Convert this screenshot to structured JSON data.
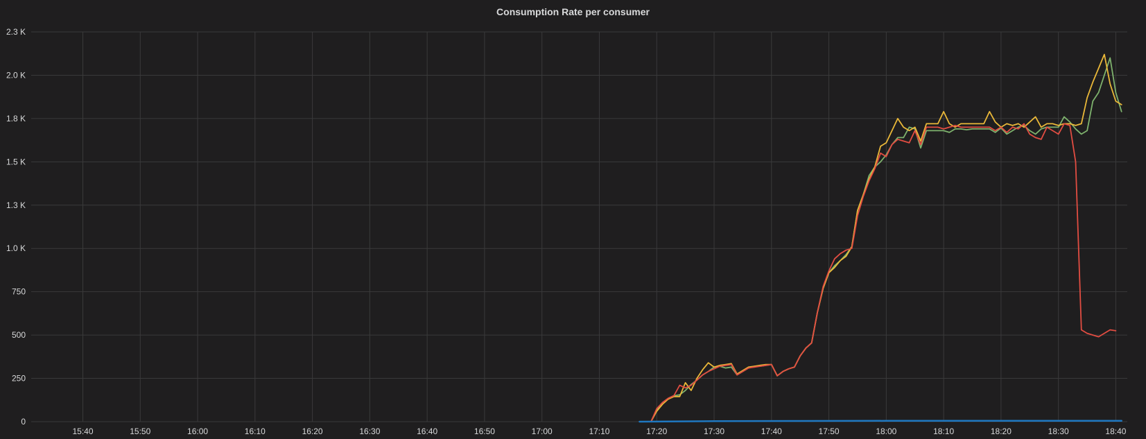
{
  "panel": {
    "title": "Consumption Rate per consumer"
  },
  "chart_data": {
    "type": "line",
    "title": "Consumption Rate per consumer",
    "xlabel": "",
    "ylabel": "",
    "x_domain": [
      "15:31",
      "18:42"
    ],
    "y_domain": [
      0,
      2250
    ],
    "y_ticks": [
      {
        "value": 0,
        "label": "0"
      },
      {
        "value": 250,
        "label": "250"
      },
      {
        "value": 500,
        "label": "500"
      },
      {
        "value": 750,
        "label": "750"
      },
      {
        "value": 1000,
        "label": "1.0 K"
      },
      {
        "value": 1250,
        "label": "1.3 K"
      },
      {
        "value": 1500,
        "label": "1.5 K"
      },
      {
        "value": 1750,
        "label": "1.8 K"
      },
      {
        "value": 2000,
        "label": "2.0 K"
      },
      {
        "value": 2250,
        "label": "2.3 K"
      }
    ],
    "x_ticks": [
      "15:40",
      "15:50",
      "16:00",
      "16:10",
      "16:20",
      "16:30",
      "16:40",
      "16:50",
      "17:00",
      "17:10",
      "17:20",
      "17:30",
      "17:40",
      "17:50",
      "18:00",
      "18:10",
      "18:20",
      "18:30",
      "18:40"
    ],
    "grid": true,
    "legend": "none",
    "series": [
      {
        "color": "#7eb26d",
        "points": [
          [
            "17:18",
            0
          ],
          [
            "17:19",
            0
          ],
          [
            "17:20",
            70
          ],
          [
            "17:21",
            110
          ],
          [
            "17:22",
            135
          ],
          [
            "17:23",
            150
          ],
          [
            "17:24",
            155
          ],
          [
            "17:25",
            180
          ],
          [
            "17:26",
            215
          ],
          [
            "17:27",
            240
          ],
          [
            "17:28",
            270
          ],
          [
            "17:29",
            290
          ],
          [
            "17:30",
            315
          ],
          [
            "17:31",
            320
          ],
          [
            "17:32",
            310
          ],
          [
            "17:33",
            315
          ],
          [
            "17:34",
            270
          ],
          [
            "17:35",
            290
          ],
          [
            "17:36",
            310
          ],
          [
            "17:37",
            320
          ],
          [
            "17:38",
            320
          ],
          [
            "17:39",
            325
          ],
          [
            "17:40",
            330
          ],
          [
            "17:41",
            265
          ],
          [
            "17:42",
            290
          ],
          [
            "17:43",
            305
          ],
          [
            "17:44",
            315
          ],
          [
            "17:45",
            380
          ],
          [
            "17:46",
            425
          ],
          [
            "17:47",
            455
          ],
          [
            "17:48",
            630
          ],
          [
            "17:49",
            770
          ],
          [
            "17:50",
            860
          ],
          [
            "17:51",
            900
          ],
          [
            "17:52",
            930
          ],
          [
            "17:53",
            965
          ],
          [
            "17:54",
            1010
          ],
          [
            "17:55",
            1220
          ],
          [
            "17:56",
            1310
          ],
          [
            "17:57",
            1420
          ],
          [
            "17:58",
            1470
          ],
          [
            "17:59",
            1500
          ],
          [
            "18:00",
            1540
          ],
          [
            "18:01",
            1600
          ],
          [
            "18:02",
            1640
          ],
          [
            "18:03",
            1640
          ],
          [
            "18:04",
            1700
          ],
          [
            "18:05",
            1690
          ],
          [
            "18:06",
            1580
          ],
          [
            "18:07",
            1680
          ],
          [
            "18:08",
            1680
          ],
          [
            "18:09",
            1680
          ],
          [
            "18:10",
            1680
          ],
          [
            "18:11",
            1670
          ],
          [
            "18:12",
            1690
          ],
          [
            "18:13",
            1690
          ],
          [
            "18:14",
            1685
          ],
          [
            "18:15",
            1690
          ],
          [
            "18:16",
            1690
          ],
          [
            "18:17",
            1690
          ],
          [
            "18:18",
            1690
          ],
          [
            "18:19",
            1670
          ],
          [
            "18:20",
            1695
          ],
          [
            "18:21",
            1660
          ],
          [
            "18:22",
            1680
          ],
          [
            "18:23",
            1700
          ],
          [
            "18:24",
            1710
          ],
          [
            "18:25",
            1680
          ],
          [
            "18:26",
            1660
          ],
          [
            "18:27",
            1690
          ],
          [
            "18:28",
            1700
          ],
          [
            "18:29",
            1700
          ],
          [
            "18:30",
            1700
          ],
          [
            "18:31",
            1760
          ],
          [
            "18:32",
            1730
          ],
          [
            "18:33",
            1690
          ],
          [
            "18:34",
            1660
          ],
          [
            "18:35",
            1680
          ],
          [
            "18:36",
            1850
          ],
          [
            "18:37",
            1900
          ],
          [
            "18:38",
            2000
          ],
          [
            "18:39",
            2100
          ],
          [
            "18:40",
            1900
          ],
          [
            "18:41",
            1790
          ]
        ]
      },
      {
        "color": "#eab839",
        "points": [
          [
            "17:18",
            0
          ],
          [
            "17:19",
            0
          ],
          [
            "17:20",
            60
          ],
          [
            "17:21",
            100
          ],
          [
            "17:22",
            130
          ],
          [
            "17:23",
            145
          ],
          [
            "17:24",
            145
          ],
          [
            "17:25",
            225
          ],
          [
            "17:26",
            180
          ],
          [
            "17:27",
            250
          ],
          [
            "17:28",
            300
          ],
          [
            "17:29",
            340
          ],
          [
            "17:30",
            315
          ],
          [
            "17:31",
            325
          ],
          [
            "17:32",
            330
          ],
          [
            "17:33",
            335
          ],
          [
            "17:34",
            275
          ],
          [
            "17:35",
            295
          ],
          [
            "17:36",
            315
          ],
          [
            "17:37",
            320
          ],
          [
            "17:38",
            325
          ],
          [
            "17:39",
            330
          ],
          [
            "17:40",
            330
          ],
          [
            "17:41",
            265
          ],
          [
            "17:42",
            290
          ],
          [
            "17:43",
            305
          ],
          [
            "17:44",
            315
          ],
          [
            "17:45",
            380
          ],
          [
            "17:46",
            425
          ],
          [
            "17:47",
            455
          ],
          [
            "17:48",
            630
          ],
          [
            "17:49",
            770
          ],
          [
            "17:50",
            860
          ],
          [
            "17:51",
            890
          ],
          [
            "17:52",
            930
          ],
          [
            "17:53",
            955
          ],
          [
            "17:54",
            1010
          ],
          [
            "17:55",
            1220
          ],
          [
            "17:56",
            1310
          ],
          [
            "17:57",
            1400
          ],
          [
            "17:58",
            1470
          ],
          [
            "17:59",
            1590
          ],
          [
            "18:00",
            1610
          ],
          [
            "18:01",
            1680
          ],
          [
            "18:02",
            1750
          ],
          [
            "18:03",
            1700
          ],
          [
            "18:04",
            1680
          ],
          [
            "18:05",
            1700
          ],
          [
            "18:06",
            1620
          ],
          [
            "18:07",
            1720
          ],
          [
            "18:08",
            1720
          ],
          [
            "18:09",
            1720
          ],
          [
            "18:10",
            1790
          ],
          [
            "18:11",
            1720
          ],
          [
            "18:12",
            1700
          ],
          [
            "18:13",
            1720
          ],
          [
            "18:14",
            1720
          ],
          [
            "18:15",
            1720
          ],
          [
            "18:16",
            1720
          ],
          [
            "18:17",
            1720
          ],
          [
            "18:18",
            1790
          ],
          [
            "18:19",
            1730
          ],
          [
            "18:20",
            1700
          ],
          [
            "18:21",
            1720
          ],
          [
            "18:22",
            1710
          ],
          [
            "18:23",
            1720
          ],
          [
            "18:24",
            1700
          ],
          [
            "18:25",
            1730
          ],
          [
            "18:26",
            1760
          ],
          [
            "18:27",
            1700
          ],
          [
            "18:28",
            1720
          ],
          [
            "18:29",
            1720
          ],
          [
            "18:30",
            1710
          ],
          [
            "18:31",
            1720
          ],
          [
            "18:32",
            1720
          ],
          [
            "18:33",
            1710
          ],
          [
            "18:34",
            1720
          ],
          [
            "18:35",
            1870
          ],
          [
            "18:36",
            1960
          ],
          [
            "18:37",
            2040
          ],
          [
            "18:38",
            2120
          ],
          [
            "18:39",
            1950
          ],
          [
            "18:40",
            1850
          ],
          [
            "18:41",
            1830
          ]
        ]
      },
      {
        "color": "#e24d42",
        "points": [
          [
            "17:18",
            0
          ],
          [
            "17:19",
            0
          ],
          [
            "17:20",
            75
          ],
          [
            "17:21",
            110
          ],
          [
            "17:22",
            135
          ],
          [
            "17:23",
            150
          ],
          [
            "17:24",
            210
          ],
          [
            "17:25",
            195
          ],
          [
            "17:26",
            210
          ],
          [
            "17:27",
            240
          ],
          [
            "17:28",
            270
          ],
          [
            "17:29",
            290
          ],
          [
            "17:30",
            305
          ],
          [
            "17:31",
            320
          ],
          [
            "17:32",
            325
          ],
          [
            "17:33",
            330
          ],
          [
            "17:34",
            270
          ],
          [
            "17:35",
            290
          ],
          [
            "17:36",
            310
          ],
          [
            "17:37",
            315
          ],
          [
            "17:38",
            320
          ],
          [
            "17:39",
            325
          ],
          [
            "17:40",
            330
          ],
          [
            "17:41",
            265
          ],
          [
            "17:42",
            290
          ],
          [
            "17:43",
            305
          ],
          [
            "17:44",
            315
          ],
          [
            "17:45",
            380
          ],
          [
            "17:46",
            425
          ],
          [
            "17:47",
            455
          ],
          [
            "17:48",
            630
          ],
          [
            "17:49",
            780
          ],
          [
            "17:50",
            870
          ],
          [
            "17:51",
            940
          ],
          [
            "17:52",
            970
          ],
          [
            "17:53",
            990
          ],
          [
            "17:54",
            1000
          ],
          [
            "17:55",
            1190
          ],
          [
            "17:56",
            1300
          ],
          [
            "17:57",
            1390
          ],
          [
            "17:58",
            1460
          ],
          [
            "17:59",
            1550
          ],
          [
            "18:00",
            1530
          ],
          [
            "18:01",
            1600
          ],
          [
            "18:02",
            1630
          ],
          [
            "18:03",
            1620
          ],
          [
            "18:04",
            1610
          ],
          [
            "18:05",
            1680
          ],
          [
            "18:06",
            1600
          ],
          [
            "18:07",
            1700
          ],
          [
            "18:08",
            1700
          ],
          [
            "18:09",
            1700
          ],
          [
            "18:10",
            1690
          ],
          [
            "18:11",
            1700
          ],
          [
            "18:12",
            1710
          ],
          [
            "18:13",
            1700
          ],
          [
            "18:14",
            1700
          ],
          [
            "18:15",
            1700
          ],
          [
            "18:16",
            1700
          ],
          [
            "18:17",
            1700
          ],
          [
            "18:18",
            1700
          ],
          [
            "18:19",
            1680
          ],
          [
            "18:20",
            1700
          ],
          [
            "18:21",
            1670
          ],
          [
            "18:22",
            1700
          ],
          [
            "18:23",
            1690
          ],
          [
            "18:24",
            1720
          ],
          [
            "18:25",
            1660
          ],
          [
            "18:26",
            1640
          ],
          [
            "18:27",
            1630
          ],
          [
            "18:28",
            1700
          ],
          [
            "18:29",
            1680
          ],
          [
            "18:30",
            1660
          ],
          [
            "18:31",
            1720
          ],
          [
            "18:32",
            1710
          ],
          [
            "18:33",
            1500
          ],
          [
            "18:34",
            530
          ],
          [
            "18:35",
            510
          ],
          [
            "18:36",
            500
          ],
          [
            "18:37",
            490
          ],
          [
            "18:38",
            510
          ],
          [
            "18:39",
            530
          ],
          [
            "18:40",
            525
          ]
        ]
      },
      {
        "color": "#1f78c1",
        "points": [
          [
            "17:17",
            0
          ],
          [
            "17:30",
            3
          ],
          [
            "17:45",
            4
          ],
          [
            "18:00",
            5
          ],
          [
            "18:15",
            5
          ],
          [
            "18:30",
            5
          ],
          [
            "18:41",
            5
          ]
        ]
      }
    ]
  }
}
